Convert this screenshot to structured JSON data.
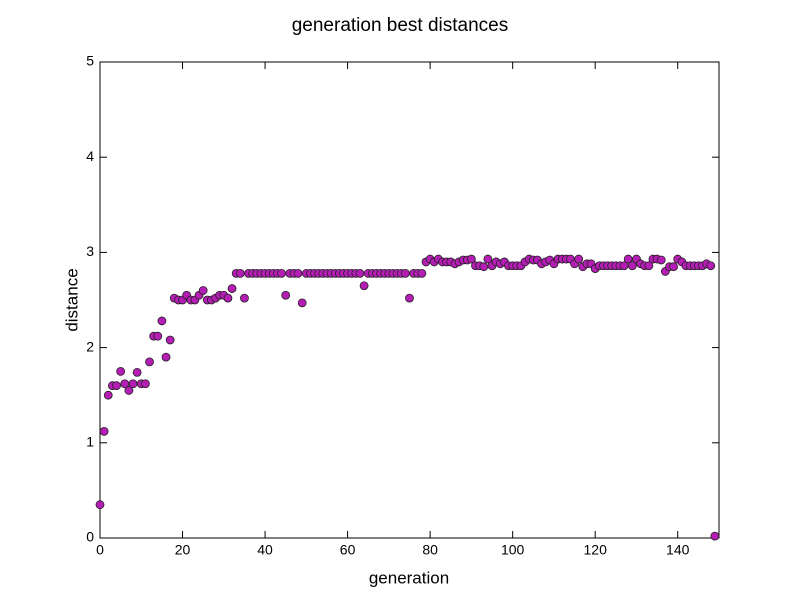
{
  "chart_data": {
    "type": "scatter",
    "title": "generation best distances",
    "x_label": "generation",
    "y_label": "distance",
    "xlim": [
      0,
      150
    ],
    "ylim": [
      0,
      5
    ],
    "xticks": [
      0,
      20,
      40,
      60,
      80,
      100,
      120,
      140
    ],
    "yticks": [
      0,
      1,
      2,
      3,
      4,
      5
    ],
    "color": "#b41eb4",
    "x": [
      0,
      1,
      2,
      3,
      4,
      5,
      6,
      7,
      8,
      9,
      10,
      11,
      12,
      13,
      14,
      15,
      16,
      17,
      18,
      19,
      20,
      21,
      22,
      23,
      24,
      25,
      26,
      27,
      28,
      29,
      30,
      31,
      32,
      33,
      34,
      35,
      36,
      37,
      38,
      39,
      40,
      41,
      42,
      43,
      44,
      45,
      46,
      47,
      48,
      49,
      50,
      51,
      52,
      53,
      54,
      55,
      56,
      57,
      58,
      59,
      60,
      61,
      62,
      63,
      64,
      65,
      66,
      67,
      68,
      69,
      70,
      71,
      72,
      73,
      74,
      75,
      76,
      77,
      78,
      79,
      80,
      81,
      82,
      83,
      84,
      85,
      86,
      87,
      88,
      89,
      90,
      91,
      92,
      93,
      94,
      95,
      96,
      97,
      98,
      99,
      100,
      101,
      102,
      103,
      104,
      105,
      106,
      107,
      108,
      109,
      110,
      111,
      112,
      113,
      114,
      115,
      116,
      117,
      118,
      119,
      120,
      121,
      122,
      123,
      124,
      125,
      126,
      127,
      128,
      129,
      130,
      131,
      132,
      133,
      134,
      135,
      136,
      137,
      138,
      139,
      140,
      141,
      142,
      143,
      144,
      145,
      146,
      147,
      148,
      149
    ],
    "values": [
      0.35,
      1.12,
      1.5,
      1.6,
      1.6,
      1.75,
      1.62,
      1.55,
      1.62,
      1.74,
      1.62,
      1.62,
      1.85,
      2.12,
      2.12,
      2.28,
      1.9,
      2.08,
      2.52,
      2.5,
      2.5,
      2.55,
      2.5,
      2.5,
      2.55,
      2.6,
      2.5,
      2.5,
      2.52,
      2.55,
      2.55,
      2.52,
      2.62,
      2.78,
      2.78,
      2.52,
      2.78,
      2.78,
      2.78,
      2.78,
      2.78,
      2.78,
      2.78,
      2.78,
      2.78,
      2.55,
      2.78,
      2.78,
      2.78,
      2.47,
      2.78,
      2.78,
      2.78,
      2.78,
      2.78,
      2.78,
      2.78,
      2.78,
      2.78,
      2.78,
      2.78,
      2.78,
      2.78,
      2.78,
      2.65,
      2.78,
      2.78,
      2.78,
      2.78,
      2.78,
      2.78,
      2.78,
      2.78,
      2.78,
      2.78,
      2.52,
      2.78,
      2.78,
      2.78,
      2.9,
      2.93,
      2.9,
      2.93,
      2.9,
      2.9,
      2.9,
      2.88,
      2.9,
      2.92,
      2.92,
      2.93,
      2.86,
      2.86,
      2.85,
      2.93,
      2.86,
      2.9,
      2.88,
      2.9,
      2.86,
      2.86,
      2.86,
      2.86,
      2.9,
      2.93,
      2.92,
      2.92,
      2.88,
      2.9,
      2.92,
      2.88,
      2.93,
      2.93,
      2.93,
      2.93,
      2.88,
      2.93,
      2.85,
      2.88,
      2.88,
      2.83,
      2.86,
      2.86,
      2.86,
      2.86,
      2.86,
      2.86,
      2.86,
      2.93,
      2.86,
      2.93,
      2.88,
      2.86,
      2.86,
      2.93,
      2.93,
      2.92,
      2.8,
      2.85,
      2.85,
      2.93,
      2.9,
      2.86,
      2.86,
      2.86,
      2.86,
      2.86,
      2.88,
      2.86,
      0.02
    ]
  }
}
